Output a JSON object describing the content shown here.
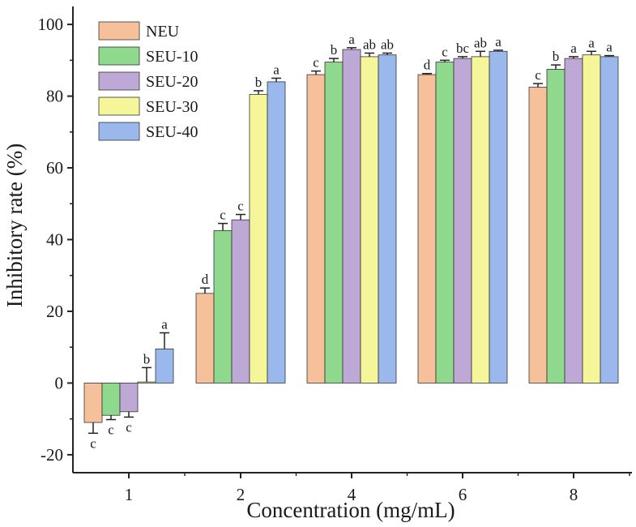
{
  "chart_data": {
    "type": "bar",
    "title": "",
    "xlabel": "Concentration (mg/mL)",
    "ylabel": "Inhibitory rate (%)",
    "ylim": [
      -25,
      105
    ],
    "yticks": [
      -20,
      0,
      20,
      40,
      60,
      80,
      100
    ],
    "categories": [
      "1",
      "2",
      "4",
      "6",
      "8"
    ],
    "legend_position": "top-left",
    "series": [
      {
        "name": "NEU",
        "color": "#f5c09a",
        "values": [
          -11,
          25,
          86,
          86,
          82.5
        ],
        "errors": [
          3,
          1.5,
          1.0,
          0.3,
          1.0
        ],
        "sig": [
          "c",
          "d",
          "c",
          "d",
          "c"
        ]
      },
      {
        "name": "SEU-10",
        "color": "#8ed98e",
        "values": [
          -9,
          42.5,
          89.5,
          89.5,
          87.5
        ],
        "errors": [
          1.2,
          2.0,
          1.0,
          0.5,
          1.2
        ],
        "sig": [
          "c",
          "c",
          "b",
          "c",
          "b"
        ]
      },
      {
        "name": "SEU-20",
        "color": "#bda8d6",
        "values": [
          -8,
          45.5,
          93,
          90.5,
          90.5
        ],
        "errors": [
          1.5,
          1.5,
          0.5,
          0.5,
          0.5
        ],
        "sig": [
          "c",
          "c",
          "a",
          "bc",
          "a"
        ]
      },
      {
        "name": "SEU-30",
        "color": "#f5f59a",
        "values": [
          0.3,
          80.5,
          91,
          91,
          91.5
        ],
        "errors": [
          4,
          1.0,
          1.0,
          1.5,
          1.0
        ],
        "sig": [
          "b",
          "b",
          "ab",
          "ab",
          "a"
        ]
      },
      {
        "name": "SEU-40",
        "color": "#9ab8ec",
        "values": [
          9.5,
          84,
          91.5,
          92.5,
          91
        ],
        "errors": [
          4.5,
          1.0,
          0.5,
          0.3,
          0.3
        ],
        "sig": [
          "a",
          "a",
          "ab",
          "a",
          "a"
        ]
      }
    ]
  }
}
